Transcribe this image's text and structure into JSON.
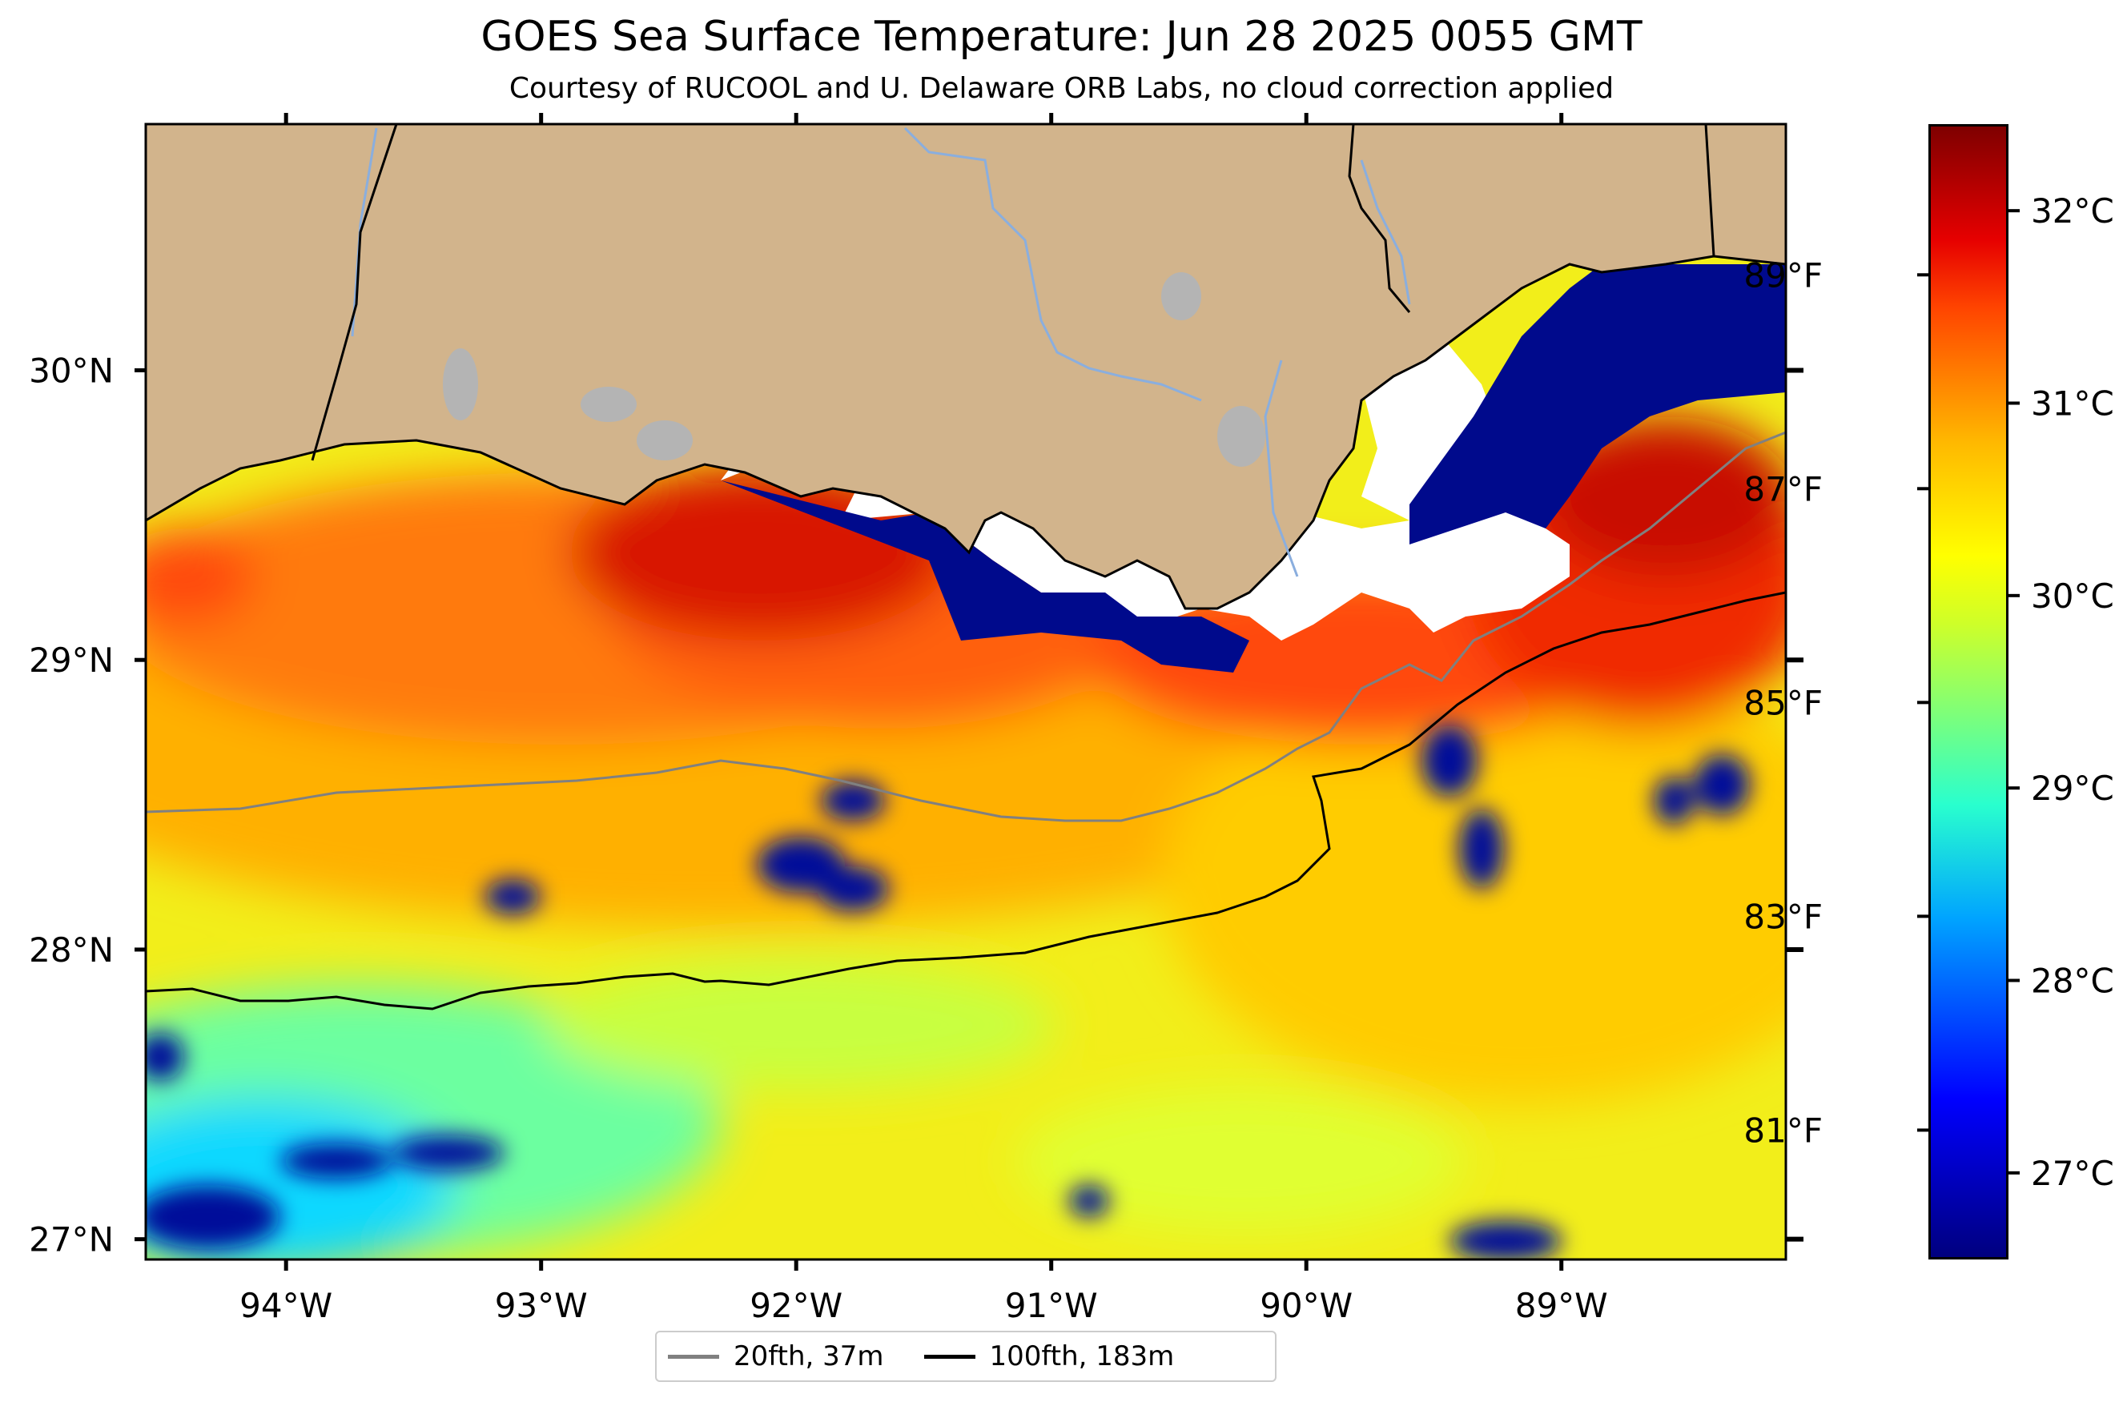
{
  "header": {
    "title": "GOES Sea Surface Temperature: Jun 28 2025 0055 GMT",
    "subtitle": "Courtesy of RUCOOL and U. Delaware ORB Labs, no cloud correction applied"
  },
  "map": {
    "lon_range": [
      -94.55,
      -88.12
    ],
    "lat_range": [
      26.93,
      30.85
    ],
    "lon_ticks": [
      {
        "value": -94,
        "label": "94°W"
      },
      {
        "value": -93,
        "label": "93°W"
      },
      {
        "value": -92,
        "label": "92°W"
      },
      {
        "value": -91,
        "label": "91°W"
      },
      {
        "value": -90,
        "label": "90°W"
      },
      {
        "value": -89,
        "label": "89°W"
      }
    ],
    "lat_ticks": [
      {
        "value": 30,
        "label": "30°N"
      },
      {
        "value": 29,
        "label": "29°N"
      },
      {
        "value": 28,
        "label": "28°N"
      },
      {
        "value": 27,
        "label": "27°N"
      }
    ],
    "colors": {
      "land": "#d2b48c",
      "ocean_warm": "#ff5a0a",
      "lake": "#b4b4b4",
      "river": "#8aaede",
      "cloud": "#ffffff",
      "masked": "#00007f"
    }
  },
  "colorbar": {
    "celsius": [
      {
        "value": 32,
        "label": "32°C"
      },
      {
        "value": 31,
        "label": "31°C"
      },
      {
        "value": 30,
        "label": "30°C"
      },
      {
        "value": 29,
        "label": "29°C"
      },
      {
        "value": 28,
        "label": "28°C"
      },
      {
        "value": 27,
        "label": "27°C"
      }
    ],
    "fahrenheit": [
      {
        "value": 89,
        "label": "89°F"
      },
      {
        "value": 87,
        "label": "87°F"
      },
      {
        "value": 85,
        "label": "85°F"
      },
      {
        "value": 83,
        "label": "83°F"
      },
      {
        "value": 81,
        "label": "81°F"
      }
    ],
    "range_c": [
      26.55,
      32.45
    ],
    "colormap": "jet"
  },
  "legend": {
    "items": [
      {
        "label": "20fth, 37m",
        "color": "#808080"
      },
      {
        "label": "100fth, 183m",
        "color": "#000000"
      }
    ]
  }
}
